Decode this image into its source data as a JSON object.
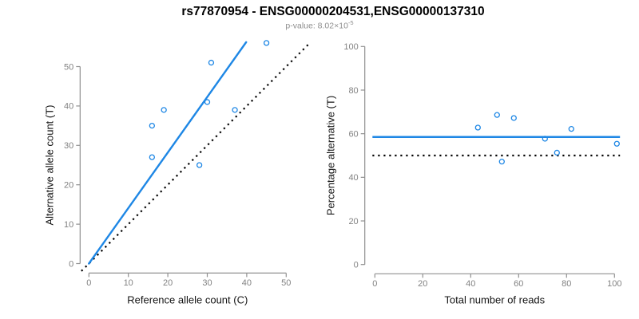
{
  "header": {
    "title": "rs77870954 - ENSG00000204531,ENSG00000137310",
    "pvalue_prefix": "p-value: ",
    "pvalue_base": "8.02×10",
    "pvalue_exponent": "-5"
  },
  "colors": {
    "accent_blue": "#1E87E5",
    "reference_black": "#000000",
    "axis_gray": "#909090",
    "tick_label_gray": "#828282"
  },
  "chart_data": [
    {
      "type": "scatter",
      "panel": "left",
      "xlabel": "Reference allele count (C)",
      "ylabel": "Alternative allele count (T)",
      "xticks": [
        0,
        10,
        20,
        30,
        40,
        50
      ],
      "yticks": [
        0,
        10,
        20,
        30,
        40,
        50
      ],
      "xlim": [
        -2.3,
        56.3
      ],
      "ylim": [
        -2.3,
        56.3
      ],
      "grid": false,
      "marker": "open-circle",
      "points": [
        [
          16,
          27
        ],
        [
          16,
          35
        ],
        [
          19,
          39
        ],
        [
          28,
          25
        ],
        [
          30,
          41
        ],
        [
          31,
          51
        ],
        [
          37,
          39
        ],
        [
          45,
          56
        ]
      ],
      "fit_line": {
        "slope": 1.41,
        "intercept": 0,
        "style": "solid",
        "color_key": "accent_blue"
      },
      "identity_line": {
        "slope": 1,
        "intercept": 0,
        "style": "dotted",
        "color_key": "reference_black"
      }
    },
    {
      "type": "scatter",
      "panel": "right",
      "xlabel": "Total number of reads",
      "ylabel": "Percentage alternative (T)",
      "xticks": [
        0,
        20,
        40,
        60,
        80,
        100
      ],
      "yticks": [
        0,
        20,
        40,
        60,
        80,
        100
      ],
      "xlim": [
        -4.2,
        105.3
      ],
      "ylim": [
        -4.2,
        105.3
      ],
      "grid": false,
      "marker": "open-circle",
      "points": [
        [
          43,
          62.8
        ],
        [
          51,
          68.6
        ],
        [
          53,
          47.2
        ],
        [
          58,
          67.2
        ],
        [
          71,
          57.7
        ],
        [
          76,
          51.3
        ],
        [
          82,
          62.2
        ],
        [
          101,
          55.4
        ]
      ],
      "mean_line": {
        "value": 58.5,
        "style": "solid",
        "color_key": "accent_blue"
      },
      "reference_line": {
        "value": 50,
        "style": "dotted",
        "color_key": "reference_black"
      }
    }
  ]
}
